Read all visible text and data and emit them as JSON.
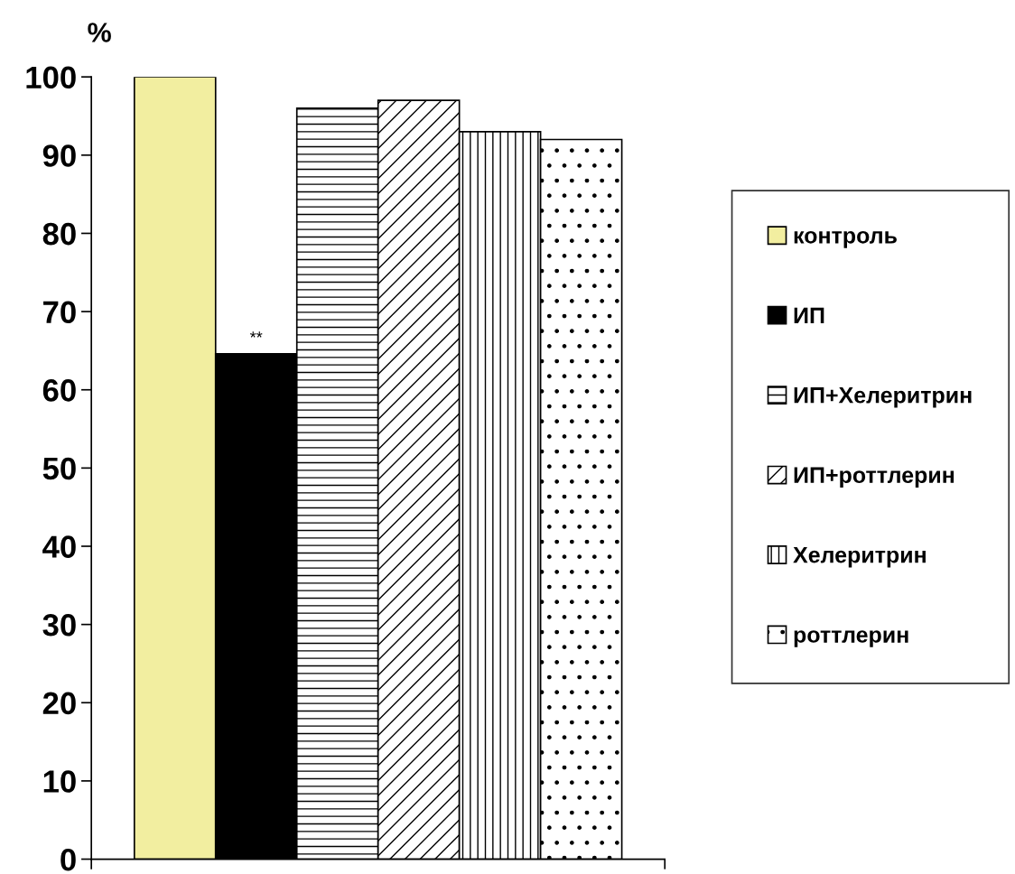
{
  "chart_data": {
    "type": "bar",
    "ylabel": "%",
    "categories": [
      null
    ],
    "series": [
      {
        "name": "контроль",
        "color": "#f2eea0",
        "values": [
          100
        ]
      },
      {
        "name": "ИП",
        "color": "#000000",
        "values": [
          64.6
        ]
      },
      {
        "name": "ИП+Хелеритрин",
        "color": "#000000",
        "values": [
          96
        ]
      },
      {
        "name": "ИП+роттлерин",
        "color": "#000000",
        "values": [
          97
        ]
      },
      {
        "name": "Хелеритрин",
        "color": "#000000",
        "values": [
          93
        ]
      },
      {
        "name": "роттлерин",
        "color": "#000000",
        "values": [
          92
        ]
      }
    ],
    "annotations": [
      {
        "text": "**",
        "y": 64.6
      }
    ],
    "ylim": [
      0,
      100
    ],
    "yticks": [
      0,
      10,
      20,
      30,
      40,
      50,
      60,
      70,
      80,
      90,
      100
    ],
    "grid": false,
    "legend": "right"
  }
}
